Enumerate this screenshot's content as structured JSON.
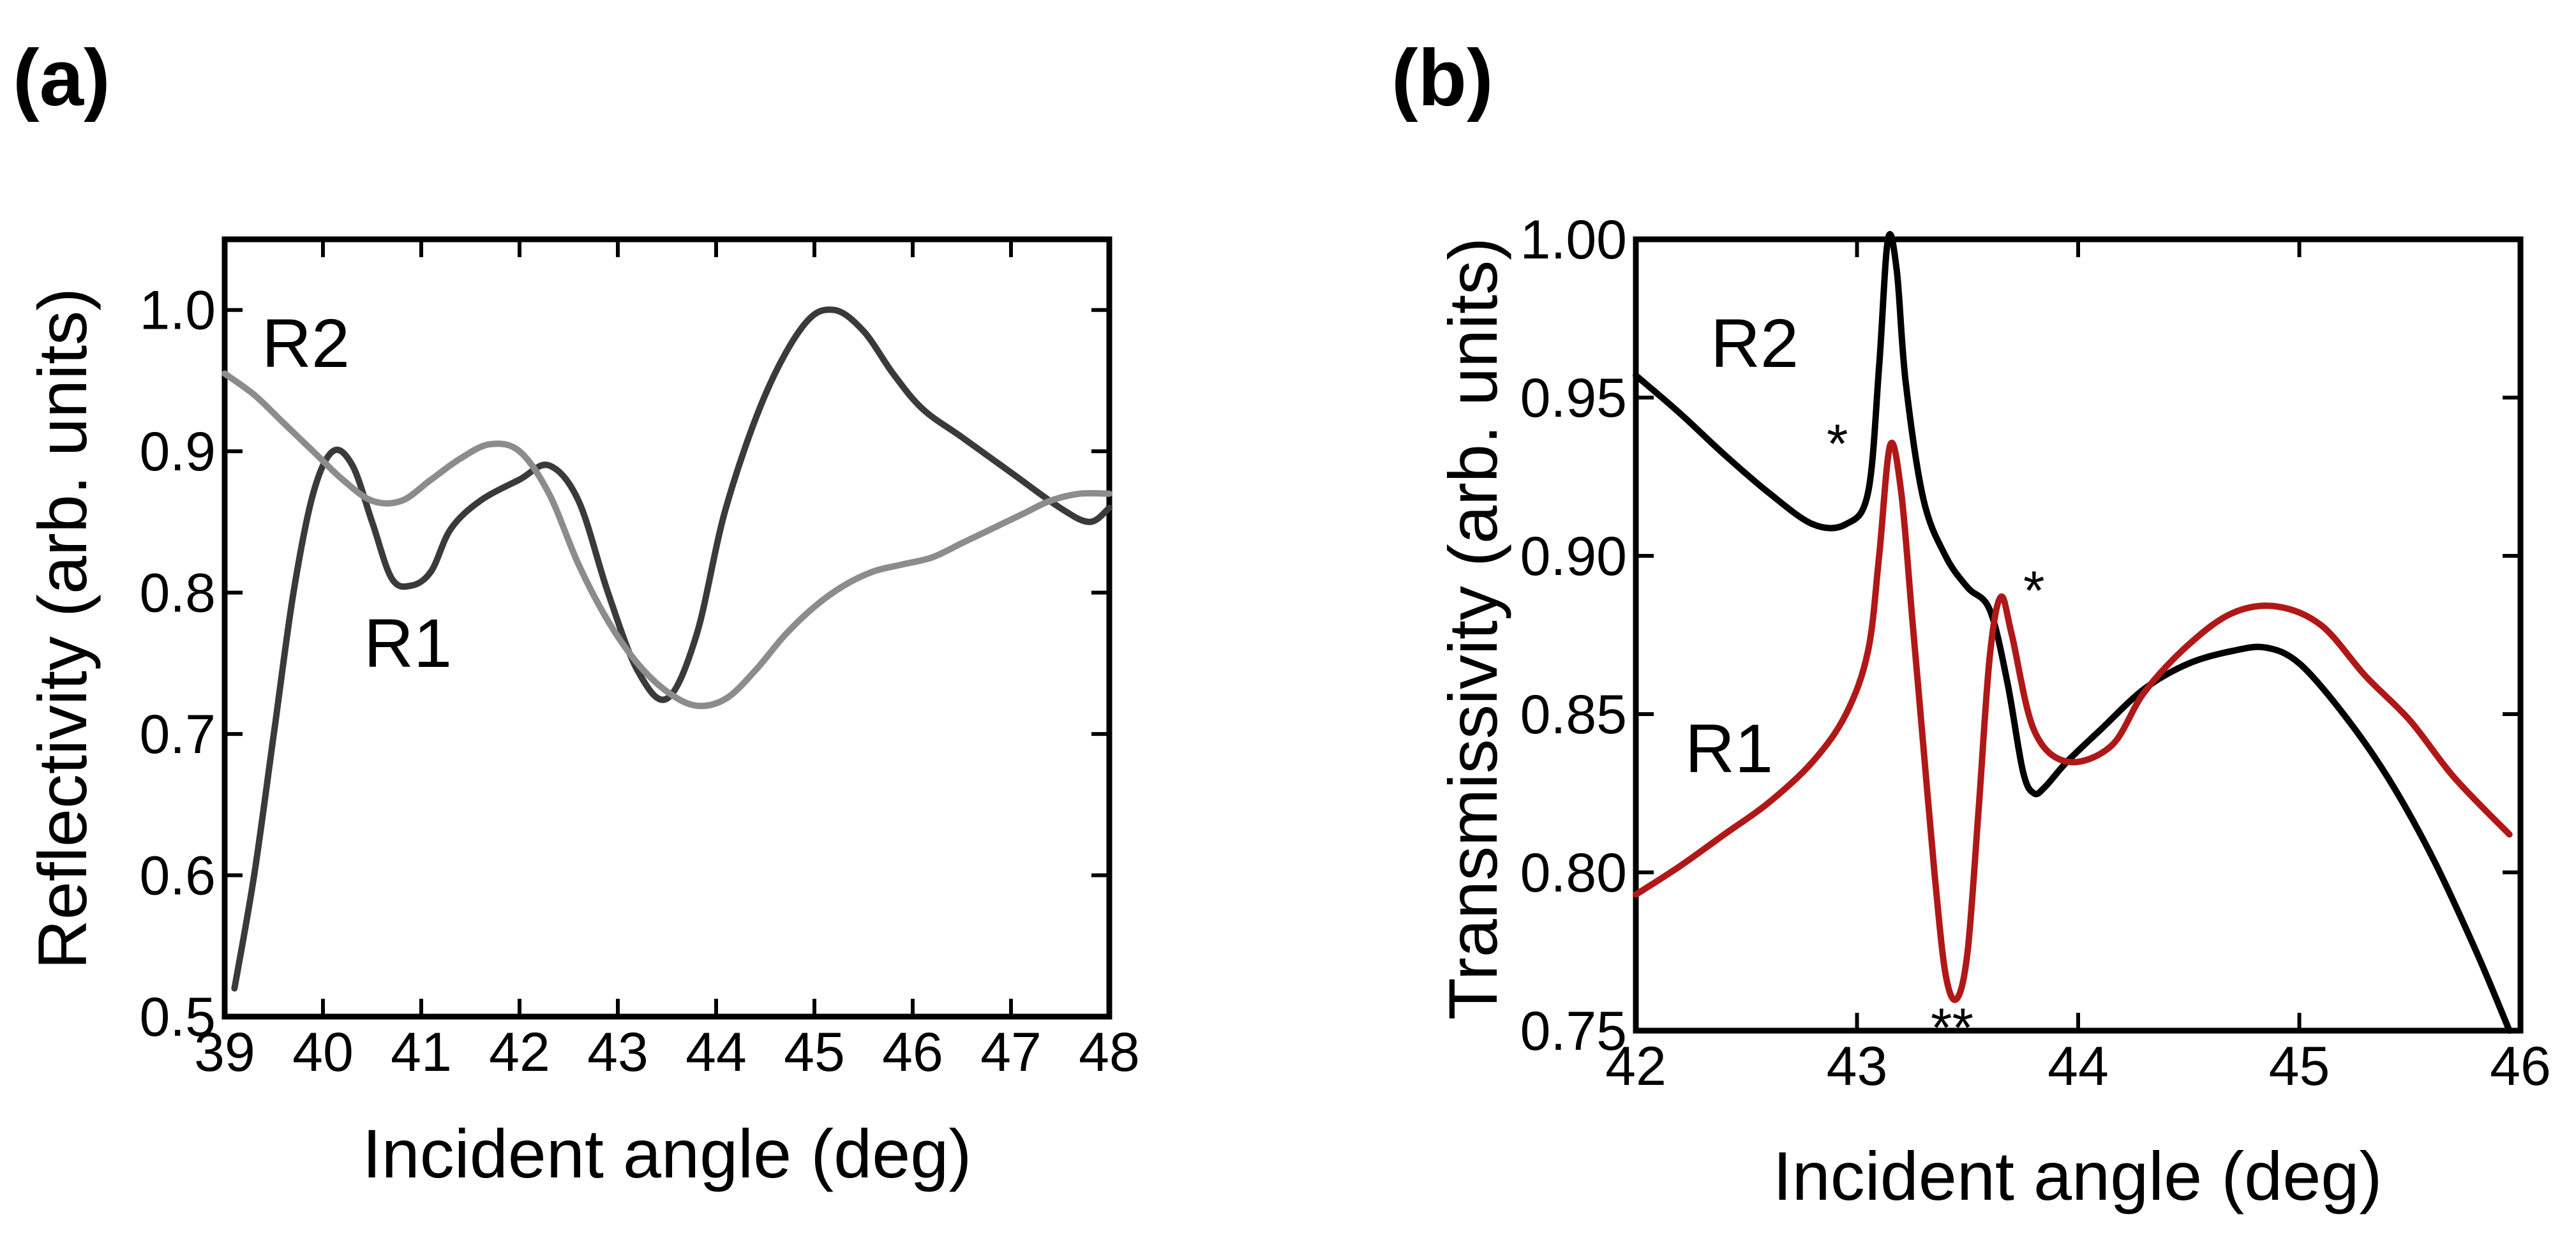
{
  "chart_data": [
    {
      "type": "line",
      "panel_label": "(a)",
      "xlabel": "Incident angle (deg)",
      "ylabel": "Reflectivity (arb. units)",
      "xlim": [
        39,
        48
      ],
      "ylim": [
        0.5,
        1.05
      ],
      "xticks": [
        39,
        40,
        41,
        42,
        43,
        44,
        45,
        46,
        47,
        48
      ],
      "xtick_labels": [
        "39",
        "40",
        "41",
        "42",
        "43",
        "44",
        "45",
        "46",
        "47",
        "48"
      ],
      "yticks": [
        0.5,
        0.6,
        0.7,
        0.8,
        0.9,
        1.0
      ],
      "ytick_labels": [
        "0.5",
        "0.6",
        "0.7",
        "0.8",
        "0.9",
        "1.0"
      ],
      "grid": false,
      "series": [
        {
          "name": "R1",
          "color": "#3a3a3a",
          "x": [
            39.1,
            39.3,
            39.5,
            39.7,
            39.9,
            40.1,
            40.3,
            40.5,
            40.7,
            40.9,
            41.1,
            41.3,
            41.6,
            42.0,
            42.3,
            42.6,
            42.9,
            43.2,
            43.5,
            43.8,
            44.1,
            44.5,
            44.9,
            45.2,
            45.5,
            45.8,
            46.1,
            46.5,
            47.0,
            47.5,
            47.8,
            48.0
          ],
          "values": [
            0.52,
            0.6,
            0.7,
            0.8,
            0.87,
            0.9,
            0.89,
            0.85,
            0.81,
            0.805,
            0.815,
            0.845,
            0.865,
            0.88,
            0.89,
            0.865,
            0.8,
            0.745,
            0.725,
            0.77,
            0.86,
            0.94,
            0.99,
            1.0,
            0.985,
            0.955,
            0.93,
            0.91,
            0.885,
            0.86,
            0.85,
            0.86
          ]
        },
        {
          "name": "R2",
          "color": "#8c8c8c",
          "x": [
            39.0,
            39.3,
            39.6,
            39.9,
            40.2,
            40.5,
            40.8,
            41.1,
            41.4,
            41.7,
            42.0,
            42.3,
            42.6,
            42.9,
            43.2,
            43.5,
            43.8,
            44.1,
            44.4,
            44.7,
            45.0,
            45.3,
            45.6,
            45.9,
            46.2,
            46.5,
            46.8,
            47.1,
            47.4,
            47.7,
            48.0
          ],
          "values": [
            0.955,
            0.94,
            0.92,
            0.9,
            0.88,
            0.865,
            0.865,
            0.88,
            0.895,
            0.905,
            0.9,
            0.87,
            0.82,
            0.78,
            0.75,
            0.73,
            0.72,
            0.725,
            0.745,
            0.77,
            0.79,
            0.805,
            0.815,
            0.82,
            0.825,
            0.835,
            0.845,
            0.855,
            0.865,
            0.87,
            0.87
          ]
        }
      ],
      "annotations": [
        {
          "text": "R2",
          "x": 39.2,
          "y": 0.96
        },
        {
          "text": "R1",
          "x": 40.3,
          "y": 0.745
        }
      ]
    },
    {
      "type": "line",
      "panel_label": "(b)",
      "xlabel": "Incident angle (deg)",
      "ylabel": "Transmissivity (arb. units)",
      "xlim": [
        42,
        46
      ],
      "ylim": [
        0.75,
        1.0
      ],
      "xticks": [
        42,
        43,
        44,
        45,
        46
      ],
      "xtick_labels": [
        "42",
        "43",
        "44",
        "45",
        "46"
      ],
      "yticks": [
        0.75,
        0.8,
        0.85,
        0.9,
        0.95,
        1.0
      ],
      "ytick_labels": [
        "0.75",
        "0.80",
        "0.85",
        "0.90",
        "0.95",
        "1.00"
      ],
      "grid": false,
      "series": [
        {
          "name": "R2",
          "color": "#000000",
          "x": [
            42.0,
            42.2,
            42.4,
            42.6,
            42.8,
            42.95,
            43.05,
            43.1,
            43.14,
            43.18,
            43.22,
            43.3,
            43.4,
            43.5,
            43.6,
            43.68,
            43.75,
            43.8,
            43.85,
            43.95,
            44.1,
            44.3,
            44.5,
            44.7,
            44.85,
            45.0,
            45.2,
            45.4,
            45.6,
            45.8,
            45.95
          ],
          "values": [
            0.957,
            0.945,
            0.932,
            0.92,
            0.91,
            0.91,
            0.92,
            0.96,
            1.0,
            0.99,
            0.955,
            0.918,
            0.9,
            0.89,
            0.883,
            0.86,
            0.832,
            0.825,
            0.827,
            0.835,
            0.845,
            0.858,
            0.866,
            0.87,
            0.871,
            0.866,
            0.85,
            0.83,
            0.805,
            0.775,
            0.75
          ]
        },
        {
          "name": "R1",
          "color": "#b01818",
          "x": [
            42.0,
            42.2,
            42.4,
            42.6,
            42.8,
            42.95,
            43.05,
            43.1,
            43.15,
            43.2,
            43.25,
            43.3,
            43.35,
            43.4,
            43.45,
            43.5,
            43.55,
            43.6,
            43.65,
            43.7,
            43.8,
            43.95,
            44.15,
            44.3,
            44.5,
            44.7,
            44.9,
            45.1,
            45.3,
            45.5,
            45.7,
            45.95
          ],
          "values": [
            0.793,
            0.802,
            0.812,
            0.822,
            0.835,
            0.85,
            0.87,
            0.9,
            0.935,
            0.92,
            0.88,
            0.84,
            0.8,
            0.768,
            0.76,
            0.775,
            0.82,
            0.868,
            0.887,
            0.875,
            0.845,
            0.835,
            0.84,
            0.857,
            0.872,
            0.882,
            0.884,
            0.878,
            0.862,
            0.848,
            0.83,
            0.812
          ]
        }
      ],
      "annotations": [
        {
          "text": "R2",
          "x": 42.35,
          "y": 0.966
        },
        {
          "text": "R1",
          "x": 42.23,
          "y": 0.85
        },
        {
          "text": "*",
          "x": 42.93,
          "y": 0.937
        },
        {
          "text": "*",
          "x": 43.72,
          "y": 0.89
        },
        {
          "text": "**",
          "x": 43.45,
          "y": 0.742
        }
      ]
    }
  ]
}
